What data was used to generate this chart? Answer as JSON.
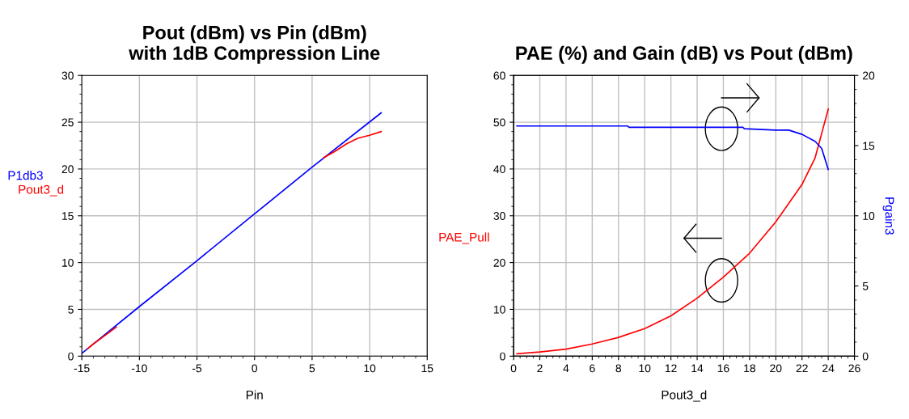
{
  "chart_data": [
    {
      "type": "line",
      "title": "Pout (dBm) vs Pin (dBm)\nwith 1dB Compression Line",
      "xlabel": "Pin",
      "xlim": [
        -15,
        15
      ],
      "xticks": [
        -15,
        -10,
        -5,
        0,
        5,
        10,
        15
      ],
      "ylim": [
        0,
        30
      ],
      "yticks": [
        0,
        5,
        10,
        15,
        20,
        25,
        30
      ],
      "grid": true,
      "series": [
        {
          "name": "P1db3",
          "color": "#0000ff",
          "x": [
            -15,
            -10,
            -5,
            0,
            5,
            11
          ],
          "values": [
            0.3,
            5.3,
            10.2,
            15.2,
            20.2,
            26.0
          ]
        },
        {
          "name": "Pout3_d",
          "color": "#ff0000",
          "x": [
            -14.5,
            -14,
            -13,
            -12,
            0,
            6,
            7,
            8,
            9,
            10,
            11
          ],
          "values": [
            0.8,
            1.3,
            2.2,
            3.1,
            null,
            21.2,
            21.9,
            22.7,
            23.3,
            23.6,
            24.0
          ]
        }
      ]
    },
    {
      "type": "line",
      "title": "PAE (%) and Gain (dB) vs Pout (dBm)",
      "xlabel": "Pout3_d",
      "xlim": [
        0,
        26
      ],
      "xticks": [
        0,
        2,
        4,
        6,
        8,
        10,
        12,
        14,
        16,
        18,
        20,
        22,
        24,
        26
      ],
      "ylim": [
        0,
        60
      ],
      "yticks": [
        0,
        10,
        20,
        30,
        40,
        50,
        60
      ],
      "y2lim": [
        0,
        20
      ],
      "y2ticks": [
        0,
        5,
        10,
        15,
        20
      ],
      "grid": true,
      "series": [
        {
          "name": "PAE_Pull",
          "color": "#ff0000",
          "x": [
            0.25,
            2,
            4,
            6,
            8,
            10,
            12,
            14,
            16,
            18,
            20,
            22,
            23,
            24
          ],
          "values": [
            0.5,
            0.9,
            1.5,
            2.6,
            4.0,
            5.9,
            8.6,
            12.4,
            16.9,
            22.0,
            28.7,
            36.7,
            42.4,
            52.8
          ]
        },
        {
          "name": "Pgain3",
          "color": "#0000ff",
          "axis": "y2",
          "x": [
            0.25,
            8.7,
            8.8,
            17.5,
            17.6,
            20,
            21,
            22,
            23,
            23.5,
            24
          ],
          "values": [
            16.4,
            16.4,
            16.3,
            16.3,
            16.2,
            16.1,
            16.1,
            15.8,
            15.3,
            14.8,
            13.3
          ]
        }
      ]
    }
  ]
}
